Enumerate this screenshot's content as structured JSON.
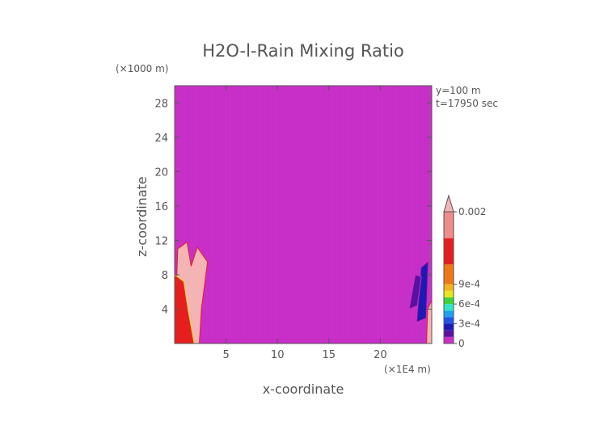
{
  "chart_data": {
    "type": "heatmap",
    "title": "H2O-l-Rain Mixing Ratio",
    "xlabel": "x-coordinate",
    "ylabel": "z-coordinate",
    "x_unit": "(×1E4 m)",
    "y_unit": "(×1000 m)",
    "xlim": [
      0,
      25
    ],
    "ylim": [
      0,
      30
    ],
    "xticks": [
      5,
      10,
      15,
      20
    ],
    "xtick_labels": [
      "5",
      "10",
      "15",
      "20"
    ],
    "yticks": [
      4,
      8,
      12,
      16,
      20,
      24,
      28
    ],
    "ytick_labels": [
      "4",
      "8",
      "12",
      "16",
      "20",
      "24",
      "28"
    ],
    "annotations": [
      "y=100 m",
      "t=17950 sec"
    ],
    "background_value": 0,
    "background_color": "#c930c9",
    "colorbar": {
      "min": 0,
      "max": 0.002,
      "tick_values": [
        0,
        0.0003,
        0.0006,
        0.0009,
        0.002
      ],
      "tick_labels": [
        "0",
        "3e-4",
        "6e-4",
        "9e-4",
        "0.002"
      ],
      "levels": [
        {
          "value": 0.0,
          "color": "#c930c9"
        },
        {
          "value": 0.0001,
          "color": "#5a10a0"
        },
        {
          "value": 0.0002,
          "color": "#1a1ab4"
        },
        {
          "value": 0.0003,
          "color": "#1f55e6"
        },
        {
          "value": 0.0004,
          "color": "#1fa0f0"
        },
        {
          "value": 0.0005,
          "color": "#2ee6c8"
        },
        {
          "value": 0.0006,
          "color": "#3cd23c"
        },
        {
          "value": 0.0007,
          "color": "#e6e61e"
        },
        {
          "value": 0.0008,
          "color": "#f5b41e"
        },
        {
          "value": 0.0009,
          "color": "#f07814"
        },
        {
          "value": 0.0012,
          "color": "#e61e1e"
        },
        {
          "value": 0.0016,
          "color": "#f08c8c"
        },
        {
          "value": 0.002,
          "color": "#f5b4b4"
        }
      ]
    },
    "rain_regions": [
      {
        "name": "left-core",
        "level": 0.002,
        "points": [
          [
            0,
            0
          ],
          [
            0.3,
            11
          ],
          [
            1.2,
            11.8
          ],
          [
            1.6,
            9
          ],
          [
            2.2,
            11.2
          ],
          [
            3.2,
            9.5
          ],
          [
            2.6,
            4
          ],
          [
            2.4,
            0
          ]
        ]
      },
      {
        "name": "left-mid",
        "level": 0.0012,
        "points": [
          [
            0,
            0
          ],
          [
            0,
            8
          ],
          [
            0.9,
            7.2
          ],
          [
            1.3,
            4
          ],
          [
            1.9,
            0
          ]
        ]
      },
      {
        "name": "right-edge-core",
        "level": 0.002,
        "points": [
          [
            24.5,
            0
          ],
          [
            24.6,
            4
          ],
          [
            25,
            5
          ],
          [
            25,
            0
          ]
        ]
      },
      {
        "name": "right-streak-1",
        "level": 0.0002,
        "points": [
          [
            23.6,
            2.6
          ],
          [
            24,
            8.8
          ],
          [
            24.6,
            9.4
          ],
          [
            24.4,
            3
          ]
        ]
      },
      {
        "name": "right-streak-2",
        "level": 0.0001,
        "points": [
          [
            22.8,
            4
          ],
          [
            23.4,
            8
          ],
          [
            24,
            7.8
          ],
          [
            23.6,
            4.4
          ]
        ]
      }
    ]
  }
}
